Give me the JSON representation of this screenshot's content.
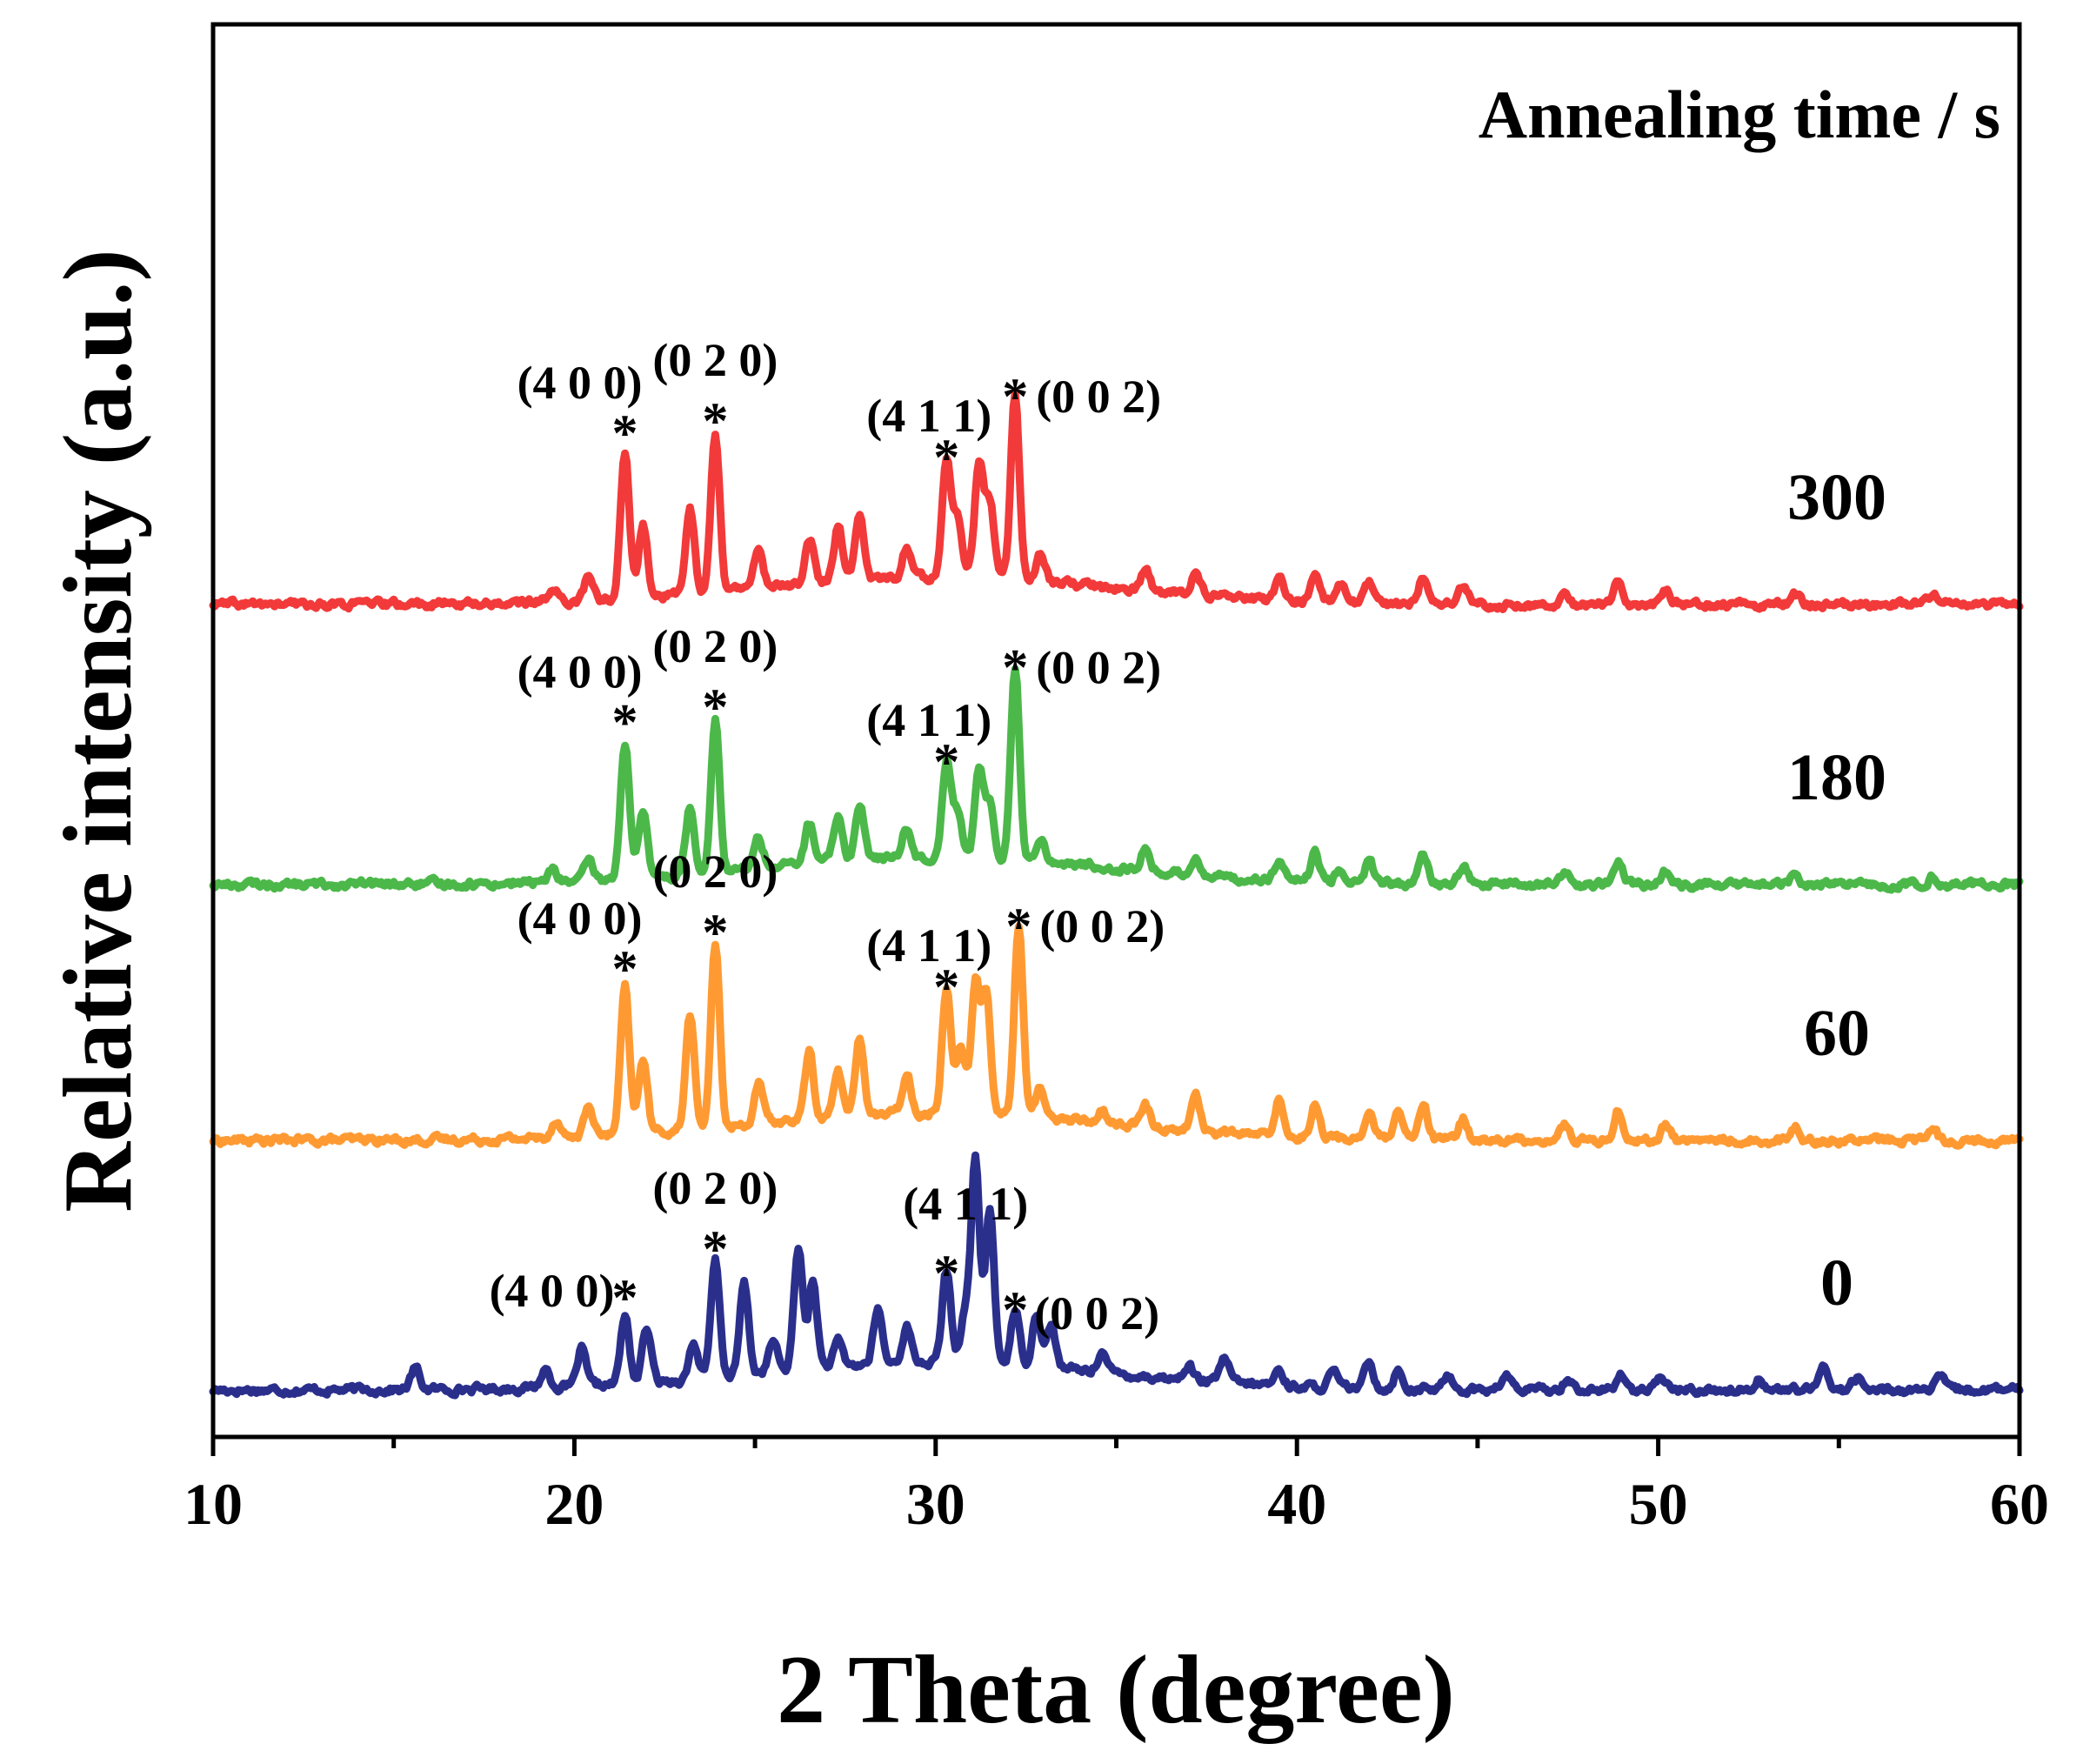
{
  "chart_data": {
    "type": "line",
    "title": "",
    "xlabel": "2 Theta (degree)",
    "ylabel": "Relative intensity (a.u.)",
    "xlim": [
      10,
      60
    ],
    "ylim": [
      0,
      4.3
    ],
    "x_ticks": [
      "10",
      "20",
      "30",
      "40",
      "50",
      "60"
    ],
    "y_ticks": [],
    "legend_title": "Annealing time / s",
    "grid": false,
    "peak_marker": "*",
    "hkl_labels": [
      "(4 0 0)",
      "(0 2 0)",
      "(4 1 1)",
      "(0 0 2)"
    ],
    "marked_peaks_2theta": [
      21.4,
      23.9,
      30.3,
      32.2
    ],
    "series": [
      {
        "name": "0",
        "color": "#2b2f8c",
        "offset": 0.0,
        "peaks": [
          [
            15.6,
            0.07
          ],
          [
            19.2,
            0.06
          ],
          [
            20.2,
            0.12
          ],
          [
            21.4,
            0.22
          ],
          [
            22.0,
            0.18
          ],
          [
            23.3,
            0.12
          ],
          [
            23.9,
            0.38
          ],
          [
            24.7,
            0.3
          ],
          [
            25.5,
            0.1
          ],
          [
            26.2,
            0.4
          ],
          [
            26.6,
            0.28
          ],
          [
            27.3,
            0.08
          ],
          [
            28.4,
            0.18
          ],
          [
            29.2,
            0.12
          ],
          [
            30.3,
            0.3
          ],
          [
            30.8,
            0.15
          ],
          [
            31.1,
            0.66
          ],
          [
            31.5,
            0.5
          ],
          [
            32.2,
            0.18
          ],
          [
            32.8,
            0.18
          ],
          [
            33.2,
            0.14
          ],
          [
            34.6,
            0.07
          ],
          [
            37.0,
            0.05
          ],
          [
            38.0,
            0.08
          ],
          [
            39.5,
            0.05
          ],
          [
            41.0,
            0.05
          ],
          [
            42.0,
            0.09
          ],
          [
            42.8,
            0.06
          ],
          [
            44.2,
            0.05
          ],
          [
            45.8,
            0.05
          ],
          [
            47.5,
            0.04
          ],
          [
            49.0,
            0.05
          ],
          [
            50.1,
            0.04
          ],
          [
            52.8,
            0.04
          ],
          [
            54.6,
            0.08
          ],
          [
            55.5,
            0.04
          ],
          [
            57.8,
            0.04
          ]
        ],
        "annotations": [
          {
            "hkl": "(4 0 0)",
            "two_theta": 21.4,
            "intensity": 0.22
          },
          {
            "hkl": "(0 2 0)",
            "two_theta": 23.9,
            "intensity": 0.38
          },
          {
            "hkl": "(4 1 1)",
            "two_theta": 30.3,
            "intensity": 0.3
          },
          {
            "hkl": "(0 0 2)",
            "two_theta": 32.2,
            "intensity": 0.18
          }
        ]
      },
      {
        "name": "60",
        "color": "#ff9a33",
        "offset": 0.82,
        "peaks": [
          [
            19.5,
            0.06
          ],
          [
            20.4,
            0.1
          ],
          [
            21.4,
            0.48
          ],
          [
            21.9,
            0.25
          ],
          [
            23.2,
            0.38
          ],
          [
            23.9,
            0.6
          ],
          [
            25.1,
            0.13
          ],
          [
            26.5,
            0.22
          ],
          [
            27.3,
            0.15
          ],
          [
            27.9,
            0.25
          ],
          [
            29.2,
            0.13
          ],
          [
            30.3,
            0.42
          ],
          [
            30.7,
            0.22
          ],
          [
            31.1,
            0.43
          ],
          [
            31.4,
            0.4
          ],
          [
            32.3,
            0.62
          ],
          [
            32.9,
            0.1
          ],
          [
            34.6,
            0.04
          ],
          [
            35.8,
            0.07
          ],
          [
            37.2,
            0.12
          ],
          [
            39.5,
            0.12
          ],
          [
            40.5,
            0.11
          ],
          [
            42.0,
            0.09
          ],
          [
            42.8,
            0.08
          ],
          [
            43.5,
            0.11
          ],
          [
            44.6,
            0.07
          ],
          [
            47.4,
            0.05
          ],
          [
            48.9,
            0.1
          ],
          [
            50.2,
            0.05
          ],
          [
            53.8,
            0.04
          ],
          [
            57.6,
            0.04
          ]
        ],
        "annotations": [
          {
            "hkl": "(4 0 0)",
            "two_theta": 21.4,
            "intensity": 0.48
          },
          {
            "hkl": "(0 2 0)",
            "two_theta": 23.9,
            "intensity": 0.6
          },
          {
            "hkl": "(4 1 1)",
            "two_theta": 30.3,
            "intensity": 0.42
          },
          {
            "hkl": "(0 0 2)",
            "two_theta": 32.3,
            "intensity": 0.62
          }
        ]
      },
      {
        "name": "180",
        "color": "#4cb84a",
        "offset": 1.66,
        "peaks": [
          [
            19.4,
            0.04
          ],
          [
            20.4,
            0.06
          ],
          [
            21.4,
            0.45
          ],
          [
            21.9,
            0.21
          ],
          [
            23.2,
            0.22
          ],
          [
            23.9,
            0.5
          ],
          [
            25.1,
            0.1
          ],
          [
            26.5,
            0.13
          ],
          [
            27.3,
            0.15
          ],
          [
            27.9,
            0.18
          ],
          [
            29.2,
            0.1
          ],
          [
            30.3,
            0.32
          ],
          [
            30.6,
            0.15
          ],
          [
            31.2,
            0.28
          ],
          [
            31.5,
            0.18
          ],
          [
            32.2,
            0.63
          ],
          [
            32.9,
            0.08
          ],
          [
            35.8,
            0.07
          ],
          [
            37.2,
            0.06
          ],
          [
            39.5,
            0.06
          ],
          [
            40.5,
            0.09
          ],
          [
            41.2,
            0.05
          ],
          [
            42.0,
            0.07
          ],
          [
            43.5,
            0.09
          ],
          [
            44.6,
            0.06
          ],
          [
            47.4,
            0.04
          ],
          [
            48.9,
            0.08
          ],
          [
            50.2,
            0.04
          ],
          [
            53.8,
            0.03
          ],
          [
            57.6,
            0.03
          ]
        ],
        "annotations": [
          {
            "hkl": "(4 0 0)",
            "two_theta": 21.4,
            "intensity": 0.45
          },
          {
            "hkl": "(0 2 0)",
            "two_theta": 23.9,
            "intensity": 0.5
          },
          {
            "hkl": "(4 1 1)",
            "two_theta": 30.3,
            "intensity": 0.32
          },
          {
            "hkl": "(0 0 2)",
            "two_theta": 32.2,
            "intensity": 0.63
          }
        ]
      },
      {
        "name": "300",
        "color": "#f23a3a",
        "offset": 2.58,
        "peaks": [
          [
            19.4,
            0.05
          ],
          [
            20.4,
            0.08
          ],
          [
            21.4,
            0.48
          ],
          [
            21.9,
            0.24
          ],
          [
            23.2,
            0.29
          ],
          [
            23.9,
            0.52
          ],
          [
            25.1,
            0.13
          ],
          [
            26.5,
            0.15
          ],
          [
            27.3,
            0.18
          ],
          [
            27.9,
            0.21
          ],
          [
            29.2,
            0.1
          ],
          [
            30.3,
            0.4
          ],
          [
            30.6,
            0.2
          ],
          [
            31.2,
            0.38
          ],
          [
            31.5,
            0.25
          ],
          [
            32.2,
            0.6
          ],
          [
            32.9,
            0.09
          ],
          [
            35.8,
            0.07
          ],
          [
            37.2,
            0.08
          ],
          [
            39.5,
            0.07
          ],
          [
            40.5,
            0.1
          ],
          [
            41.2,
            0.06
          ],
          [
            42.0,
            0.07
          ],
          [
            43.5,
            0.09
          ],
          [
            44.6,
            0.06
          ],
          [
            47.4,
            0.04
          ],
          [
            48.9,
            0.08
          ],
          [
            50.2,
            0.04
          ],
          [
            53.8,
            0.03
          ],
          [
            57.6,
            0.03
          ]
        ],
        "annotations": [
          {
            "hkl": "(4 0 0)",
            "two_theta": 21.4,
            "intensity": 0.48
          },
          {
            "hkl": "(0 2 0)",
            "two_theta": 23.9,
            "intensity": 0.52
          },
          {
            "hkl": "(4 1 1)",
            "two_theta": 30.3,
            "intensity": 0.4
          },
          {
            "hkl": "(0 0 2)",
            "two_theta": 32.2,
            "intensity": 0.6
          }
        ]
      }
    ]
  }
}
